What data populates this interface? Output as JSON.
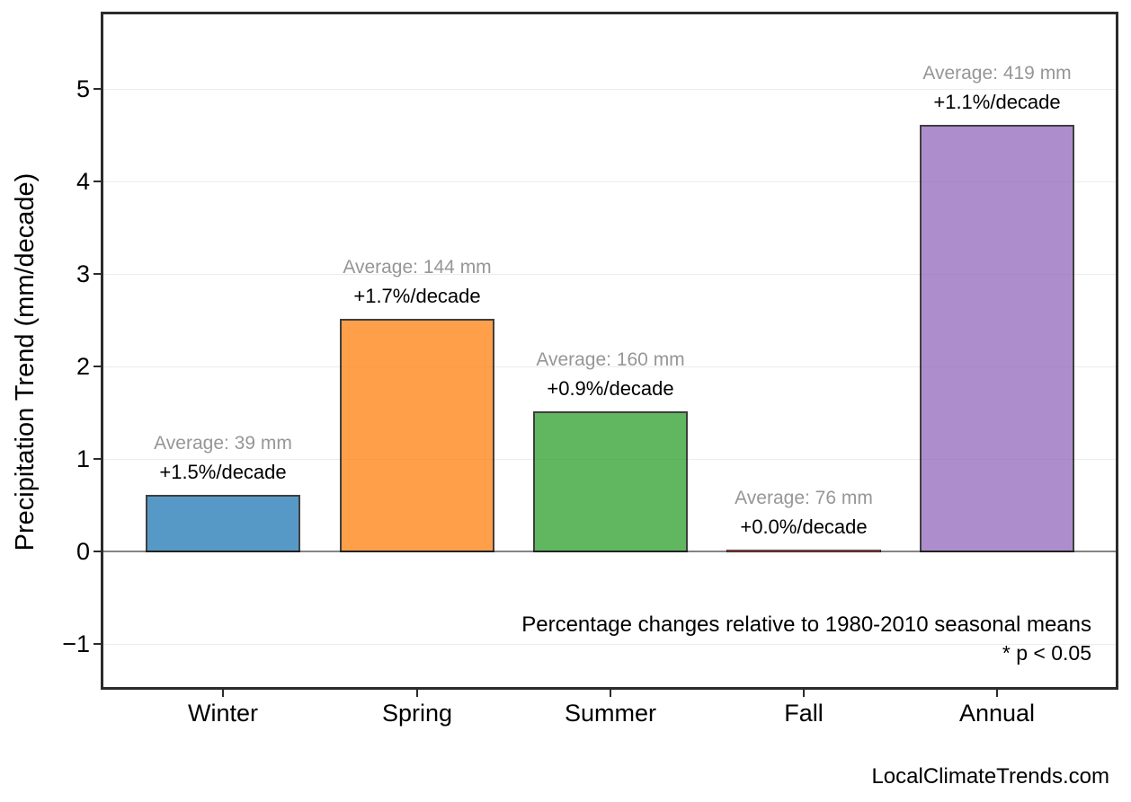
{
  "watermark": "LocalClimateTrends.com",
  "chart_data": {
    "type": "bar",
    "title": "",
    "xlabel": "",
    "ylabel": "Precipitation Trend (mm/decade)",
    "ylim": [
      -1.55,
      5.85
    ],
    "grid": "horizontal",
    "legend": "none",
    "categories": [
      "Winter",
      "Spring",
      "Summer",
      "Fall",
      "Annual"
    ],
    "values": [
      0.6,
      2.5,
      1.5,
      0.0,
      4.6
    ],
    "bar_colors": [
      "#1f77b4",
      "#ff7f0e",
      "#2ca02c",
      "#d62728",
      "#9467bd"
    ],
    "bar_edge_color": "#000000",
    "bar_alpha": 0.75,
    "yticks": [
      {
        "value": 5,
        "label": "5"
      },
      {
        "value": 4,
        "label": "4"
      },
      {
        "value": 3,
        "label": "3"
      },
      {
        "value": 2,
        "label": "2"
      },
      {
        "value": 1,
        "label": "1"
      },
      {
        "value": 0,
        "label": "0"
      },
      {
        "value": -1,
        "label": "−1"
      }
    ],
    "annotations": [
      {
        "average": "Average: 39 mm",
        "trend": "+1.5%/decade"
      },
      {
        "average": "Average: 144 mm",
        "trend": "+1.7%/decade"
      },
      {
        "average": "Average: 160 mm",
        "trend": "+0.9%/decade"
      },
      {
        "average": "Average: 76 mm",
        "trend": "+0.0%/decade"
      },
      {
        "average": "Average: 419 mm",
        "trend": "+1.1%/decade"
      }
    ],
    "annotation_colors": {
      "average": "#969696",
      "trend": "#000000"
    },
    "zero_line_color": "#848484",
    "footnote_line1": "Percentage changes relative to 1980-2010 seasonal means",
    "footnote_line2": "* p < 0.05"
  }
}
